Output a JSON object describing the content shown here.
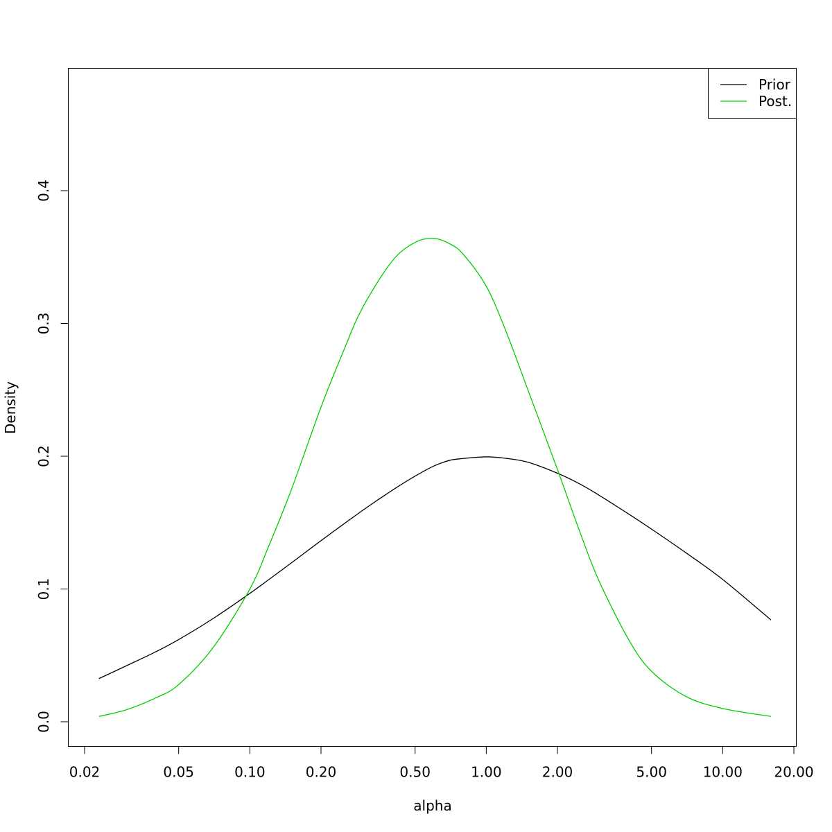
{
  "chart_data": {
    "type": "line",
    "xscale": "log",
    "xlabel": "alpha",
    "ylabel": "Density",
    "xlim": [
      0.02,
      20.0
    ],
    "ylim": [
      -0.02,
      0.49
    ],
    "xticks": [
      "0.02",
      "0.05",
      "0.10",
      "0.20",
      "0.50",
      "1.00",
      "2.00",
      "5.00",
      "10.00",
      "20.00"
    ],
    "yticks": [
      "0.0",
      "0.1",
      "0.2",
      "0.3",
      "0.4"
    ],
    "grid": false,
    "legend": {
      "position": "top-right",
      "entries": [
        "Prior",
        "Post."
      ]
    },
    "series": [
      {
        "name": "Prior",
        "color": "#000000",
        "x": [
          0.023,
          0.03,
          0.04,
          0.05,
          0.07,
          0.1,
          0.15,
          0.2,
          0.3,
          0.4,
          0.5,
          0.6,
          0.7,
          0.8,
          1.0,
          1.2,
          1.5,
          2.0,
          2.5,
          3.0,
          4.0,
          5.0,
          7.0,
          10.0,
          16.0
        ],
        "y": [
          0.0325,
          0.0421,
          0.0527,
          0.0619,
          0.0778,
          0.0967,
          0.1197,
          0.1364,
          0.1592,
          0.1743,
          0.185,
          0.1926,
          0.1969,
          0.1983,
          0.1995,
          0.1985,
          0.1955,
          0.1872,
          0.1789,
          0.1706,
          0.1565,
          0.1451,
          0.1272,
          0.1072,
          0.0767
        ]
      },
      {
        "name": "Post.",
        "color": "#00cd00",
        "x": [
          0.023,
          0.03,
          0.04,
          0.05,
          0.07,
          0.1,
          0.12,
          0.15,
          0.2,
          0.25,
          0.3,
          0.4,
          0.5,
          0.6,
          0.7,
          0.8,
          1.0,
          1.2,
          1.5,
          2.0,
          2.5,
          3.0,
          4.0,
          5.0,
          7.0,
          10.0,
          16.0
        ],
        "y": [
          0.004,
          0.009,
          0.018,
          0.028,
          0.056,
          0.1,
          0.132,
          0.175,
          0.237,
          0.28,
          0.312,
          0.347,
          0.361,
          0.364,
          0.36,
          0.352,
          0.328,
          0.296,
          0.25,
          0.19,
          0.142,
          0.106,
          0.062,
          0.038,
          0.019,
          0.01,
          0.004
        ]
      }
    ]
  }
}
